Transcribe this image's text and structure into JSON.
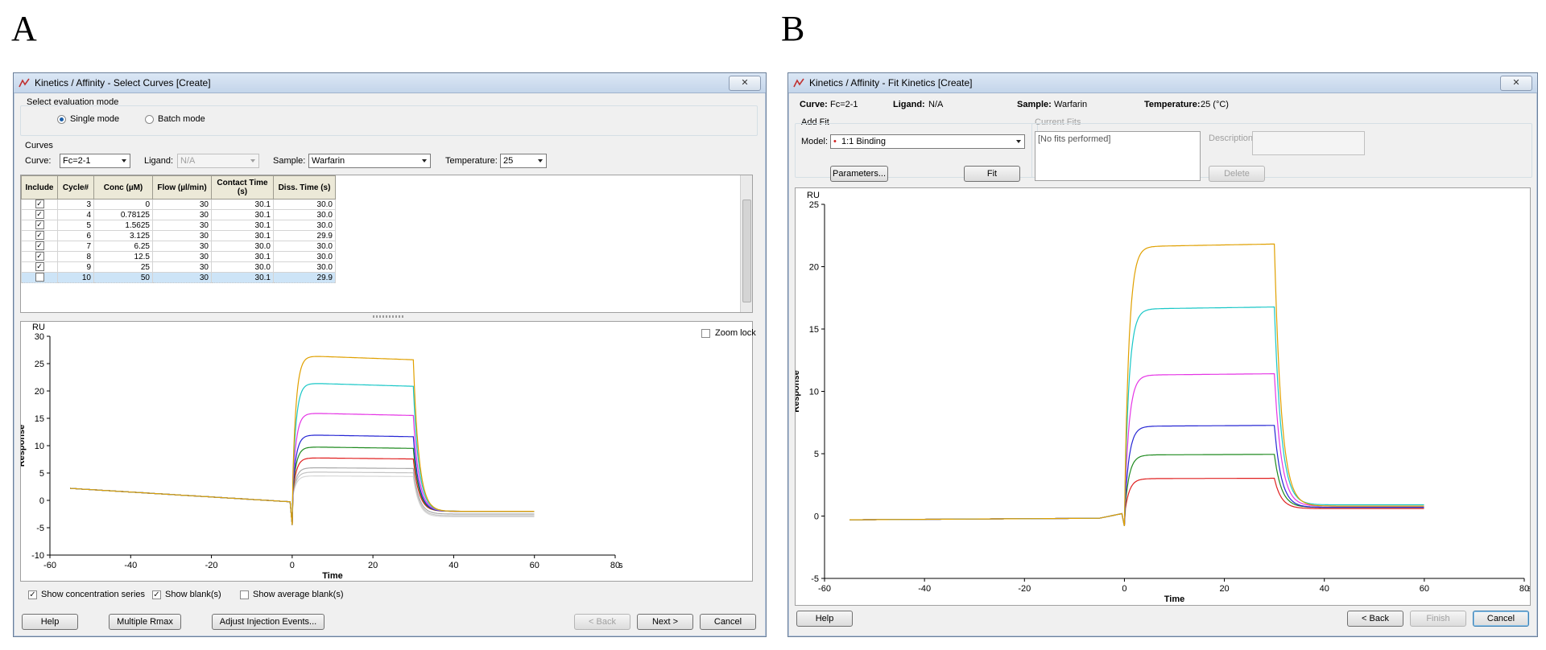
{
  "panels": {
    "a": "A",
    "b": "B"
  },
  "colors": {
    "yellow": "#e0a000",
    "cyan": "#19c7c7",
    "magenta": "#e535e5",
    "blue": "#2626d4",
    "green": "#1f8a1f",
    "red": "#e02020",
    "gray1": "#a9a9a9",
    "gray2": "#c4c4c4",
    "gray3": "#d6d6d6"
  },
  "select_window": {
    "title": "Kinetics / Affinity - Select Curves  [Create]",
    "close_label": "✕",
    "eval_mode_label": "Select evaluation mode",
    "single_mode": "Single mode",
    "batch_mode": "Batch mode",
    "curves_group": "Curves",
    "curve_label": "Curve:",
    "curve_value": "Fc=2-1",
    "ligand_label": "Ligand:",
    "ligand_value": "N/A",
    "sample_label": "Sample:",
    "sample_value": "Warfarin",
    "temperature_label": "Temperature:",
    "temperature_value": "25",
    "table": {
      "headers": [
        "Include",
        "Cycle#",
        "Conc (µM)",
        "Flow (µl/min)",
        "Contact Time (s)",
        "Diss. Time (s)"
      ],
      "rows": [
        {
          "include": true,
          "cycle": "3",
          "conc": "0",
          "flow": "30",
          "contact": "30.1",
          "diss": "30.0"
        },
        {
          "include": true,
          "cycle": "4",
          "conc": "0.78125",
          "flow": "30",
          "contact": "30.1",
          "diss": "30.0"
        },
        {
          "include": true,
          "cycle": "5",
          "conc": "1.5625",
          "flow": "30",
          "contact": "30.1",
          "diss": "30.0"
        },
        {
          "include": true,
          "cycle": "6",
          "conc": "3.125",
          "flow": "30",
          "contact": "30.1",
          "diss": "29.9"
        },
        {
          "include": true,
          "cycle": "7",
          "conc": "6.25",
          "flow": "30",
          "contact": "30.0",
          "diss": "30.0"
        },
        {
          "include": true,
          "cycle": "8",
          "conc": "12.5",
          "flow": "30",
          "contact": "30.1",
          "diss": "30.0"
        },
        {
          "include": true,
          "cycle": "9",
          "conc": "25",
          "flow": "30",
          "contact": "30.0",
          "diss": "30.0"
        },
        {
          "include": false,
          "cycle": "10",
          "conc": "50",
          "flow": "30",
          "contact": "30.1",
          "diss": "29.9"
        }
      ]
    },
    "zoom_lock": "Zoom lock",
    "show_conc_series": "Show concentration series",
    "show_blanks": "Show blank(s)",
    "show_avg_blanks": "Show average blank(s)",
    "buttons": {
      "help": "Help",
      "multiple_rmax": "Multiple Rmax",
      "adjust": "Adjust Injection Events...",
      "back": "< Back",
      "next": "Next >",
      "cancel": "Cancel"
    }
  },
  "fit_window": {
    "title": "Kinetics / Affinity - Fit Kinetics  [Create]",
    "close_label": "✕",
    "curve_label": "Curve:",
    "curve_value": "Fc=2-1",
    "ligand_label": "Ligand:",
    "ligand_value": "N/A",
    "sample_label": "Sample:",
    "sample_value": "Warfarin",
    "temperature_label": "Temperature:",
    "temperature_value": "25 (°C)",
    "add_fit": "Add Fit",
    "model_label": "Model:",
    "model_value": "1:1 Binding",
    "current_fits": "Current Fits",
    "fits_text": "[No fits performed]",
    "description_label": "Description:",
    "buttons": {
      "parameters": "Parameters...",
      "fit": "Fit",
      "delete": "Delete",
      "help": "Help",
      "back": "< Back",
      "finish": "Finish",
      "cancel": "Cancel"
    }
  },
  "chart_data": [
    {
      "type": "line",
      "xlabel": "Time",
      "ylabel": "Response",
      "unit_y": "RU",
      "unit_x": "s",
      "xlim": [
        -60,
        80
      ],
      "ylim": [
        -10,
        30
      ],
      "xticks": [
        -60,
        -40,
        -20,
        0,
        20,
        40,
        60,
        80
      ],
      "yticks": [
        -10,
        -5,
        0,
        5,
        10,
        15,
        20,
        25,
        30
      ],
      "series": [
        {
          "color": "yellow",
          "plateau": 26.5,
          "end_diss": -2.0
        },
        {
          "color": "cyan",
          "plateau": 21.5,
          "end_diss": -2.0
        },
        {
          "color": "magenta",
          "plateau": 16.0,
          "end_diss": -2.0
        },
        {
          "color": "blue",
          "plateau": 12.0,
          "end_diss": -2.0
        },
        {
          "color": "green",
          "plateau": 9.8,
          "end_diss": -2.0
        },
        {
          "color": "red",
          "plateau": 7.8,
          "end_diss": -2.0
        },
        {
          "color": "gray1",
          "plateau": 6.0,
          "end_diss": -2.5
        },
        {
          "color": "gray2",
          "plateau": 5.2,
          "end_diss": -2.8
        },
        {
          "color": "gray3",
          "plateau": 4.5,
          "end_diss": -3.0
        }
      ]
    },
    {
      "type": "line",
      "xlabel": "Time",
      "ylabel": "Response",
      "unit_y": "RU",
      "unit_x": "s",
      "xlim": [
        -60,
        80
      ],
      "ylim": [
        -5,
        25
      ],
      "xticks": [
        -60,
        -40,
        -20,
        0,
        20,
        40,
        60,
        80
      ],
      "yticks": [
        -5,
        0,
        5,
        10,
        15,
        20,
        25
      ],
      "series": [
        {
          "color": "yellow",
          "plateau": 21.6,
          "end_diss": 0.8
        },
        {
          "color": "cyan",
          "plateau": 16.6,
          "end_diss": 0.9
        },
        {
          "color": "magenta",
          "plateau": 11.3,
          "end_diss": 0.8
        },
        {
          "color": "blue",
          "plateau": 7.2,
          "end_diss": 0.7
        },
        {
          "color": "green",
          "plateau": 4.9,
          "end_diss": 0.7
        },
        {
          "color": "red",
          "plateau": 3.0,
          "end_diss": 0.6
        }
      ]
    }
  ]
}
